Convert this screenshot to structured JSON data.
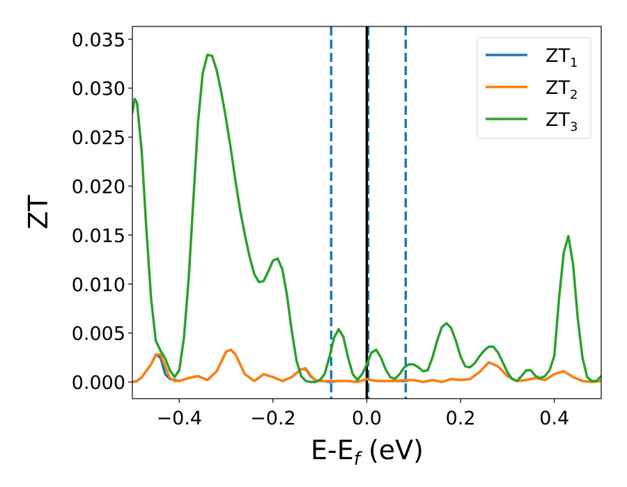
{
  "chart_data": {
    "type": "line",
    "xlabel_main": "E-E",
    "xlabel_sub": "f",
    "xlabel_unit": " (eV)",
    "ylabel": "ZT",
    "xlim": [
      -0.5,
      0.5
    ],
    "ylim": [
      -0.0017,
      0.0363
    ],
    "xticks": [
      -0.4,
      -0.2,
      0.0,
      0.2,
      0.4
    ],
    "xtick_labels": [
      "−0.4",
      "−0.2",
      "0.0",
      "0.2",
      "0.4"
    ],
    "yticks": [
      0.0,
      0.005,
      0.01,
      0.015,
      0.02,
      0.025,
      0.03,
      0.035
    ],
    "ytick_labels": [
      "0.000",
      "0.005",
      "0.010",
      "0.015",
      "0.020",
      "0.025",
      "0.030",
      "0.035"
    ],
    "grid": false,
    "legend_position": "top-right",
    "vlines": [
      {
        "x": -0.076,
        "style": "dashed",
        "color": "#1f77b4"
      },
      {
        "x": 0.0,
        "style": "solid",
        "color": "#000000"
      },
      {
        "x": 0.003,
        "style": "dashed",
        "color": "#1f77b4"
      },
      {
        "x": 0.083,
        "style": "dashed",
        "color": "#1f77b4"
      }
    ],
    "series": [
      {
        "name_main": "ZT",
        "name_sub": "1",
        "color": "#1f77b4",
        "x": [
          -0.5,
          -0.49,
          -0.48,
          -0.46,
          -0.45,
          -0.44,
          -0.43,
          -0.42,
          -0.41,
          -0.4,
          -0.38,
          -0.36,
          -0.34,
          -0.32,
          -0.3,
          -0.29,
          -0.28,
          -0.26,
          -0.24,
          -0.22,
          -0.2,
          -0.18,
          -0.16,
          -0.14,
          -0.13,
          -0.12,
          -0.11,
          -0.1,
          -0.09,
          -0.08,
          -0.06,
          -0.04,
          -0.02,
          0.0,
          0.02,
          0.04,
          0.06,
          0.08,
          0.09,
          0.1,
          0.12,
          0.14,
          0.16,
          0.18,
          0.2,
          0.22,
          0.24,
          0.26,
          0.28,
          0.3,
          0.32,
          0.34,
          0.36,
          0.38,
          0.4,
          0.42,
          0.44,
          0.46,
          0.48,
          0.5
        ],
        "y": [
          0.0,
          0.0001,
          0.0005,
          0.0018,
          0.0028,
          0.0025,
          0.0008,
          0.0003,
          0.0002,
          0.0001,
          0.0004,
          0.0006,
          0.0002,
          0.0011,
          0.0031,
          0.0033,
          0.0028,
          0.0008,
          0.0001,
          0.0008,
          0.0005,
          0.0001,
          0.0005,
          0.0013,
          0.0013,
          0.0006,
          0.0002,
          0.0001,
          0.0001,
          0.0,
          0.0001,
          0.0001,
          0.0,
          0.0003,
          0.0001,
          0.0001,
          0.0001,
          0.0001,
          0.0002,
          0.0002,
          0.0,
          0.0002,
          0.0,
          0.0003,
          0.0002,
          0.0003,
          0.001,
          0.002,
          0.0016,
          0.0006,
          0.0001,
          0.0002,
          0.0004,
          0.0002,
          0.0008,
          0.0011,
          0.0005,
          0.0001,
          0.0,
          0.0001
        ]
      },
      {
        "name_main": "ZT",
        "name_sub": "2",
        "color": "#ff7f0e",
        "x": [
          -0.5,
          -0.49,
          -0.48,
          -0.46,
          -0.45,
          -0.44,
          -0.43,
          -0.42,
          -0.41,
          -0.4,
          -0.38,
          -0.36,
          -0.34,
          -0.32,
          -0.3,
          -0.29,
          -0.28,
          -0.26,
          -0.24,
          -0.22,
          -0.2,
          -0.18,
          -0.16,
          -0.14,
          -0.13,
          -0.12,
          -0.11,
          -0.1,
          -0.09,
          -0.08,
          -0.06,
          -0.04,
          -0.02,
          0.0,
          0.02,
          0.04,
          0.06,
          0.08,
          0.09,
          0.1,
          0.12,
          0.14,
          0.16,
          0.18,
          0.2,
          0.22,
          0.24,
          0.26,
          0.28,
          0.3,
          0.32,
          0.34,
          0.36,
          0.38,
          0.4,
          0.42,
          0.44,
          0.46,
          0.48,
          0.5
        ],
        "y": [
          0.0,
          0.0001,
          0.0005,
          0.0018,
          0.0028,
          0.0028,
          0.0016,
          0.0004,
          0.0001,
          0.0001,
          0.0004,
          0.0006,
          0.0002,
          0.0011,
          0.0031,
          0.0033,
          0.0028,
          0.0008,
          0.0001,
          0.0008,
          0.0005,
          0.0001,
          0.0005,
          0.0013,
          0.0014,
          0.0007,
          0.0002,
          0.0001,
          0.0001,
          0.0001,
          0.0001,
          0.0001,
          0.0,
          0.0003,
          0.0001,
          0.0001,
          0.0001,
          0.0002,
          0.0002,
          0.0002,
          0.0,
          0.0002,
          0.0,
          0.0003,
          0.0002,
          0.0003,
          0.001,
          0.002,
          0.0016,
          0.0006,
          0.0001,
          0.0002,
          0.0004,
          0.0002,
          0.0008,
          0.0011,
          0.0005,
          0.0001,
          0.0,
          0.0001
        ]
      },
      {
        "name_main": "ZT",
        "name_sub": "3",
        "color": "#2ca02c",
        "x": [
          -0.5,
          -0.495,
          -0.49,
          -0.48,
          -0.47,
          -0.46,
          -0.45,
          -0.44,
          -0.43,
          -0.42,
          -0.41,
          -0.4,
          -0.39,
          -0.38,
          -0.37,
          -0.36,
          -0.35,
          -0.34,
          -0.33,
          -0.32,
          -0.31,
          -0.3,
          -0.29,
          -0.28,
          -0.27,
          -0.26,
          -0.25,
          -0.24,
          -0.23,
          -0.22,
          -0.21,
          -0.2,
          -0.19,
          -0.18,
          -0.17,
          -0.16,
          -0.15,
          -0.14,
          -0.13,
          -0.12,
          -0.11,
          -0.1,
          -0.09,
          -0.08,
          -0.07,
          -0.06,
          -0.05,
          -0.04,
          -0.03,
          -0.02,
          -0.01,
          0.0,
          0.01,
          0.02,
          0.03,
          0.04,
          0.05,
          0.06,
          0.07,
          0.08,
          0.09,
          0.1,
          0.11,
          0.12,
          0.13,
          0.14,
          0.15,
          0.16,
          0.17,
          0.18,
          0.19,
          0.2,
          0.21,
          0.22,
          0.23,
          0.24,
          0.25,
          0.26,
          0.27,
          0.28,
          0.29,
          0.3,
          0.31,
          0.32,
          0.33,
          0.34,
          0.35,
          0.36,
          0.37,
          0.38,
          0.39,
          0.4,
          0.41,
          0.42,
          0.43,
          0.44,
          0.45,
          0.46,
          0.47,
          0.48,
          0.49,
          0.5
        ],
        "y": [
          0.0275,
          0.0289,
          0.0285,
          0.0235,
          0.0155,
          0.0085,
          0.0042,
          0.0032,
          0.0024,
          0.0012,
          0.0005,
          0.0012,
          0.0045,
          0.0105,
          0.0185,
          0.0265,
          0.0315,
          0.0334,
          0.0333,
          0.0318,
          0.0295,
          0.0268,
          0.0238,
          0.0205,
          0.0175,
          0.015,
          0.0128,
          0.011,
          0.0102,
          0.0103,
          0.0113,
          0.0124,
          0.0126,
          0.0115,
          0.0088,
          0.0052,
          0.0022,
          0.0006,
          0.0001,
          0.0,
          0.0,
          0.0002,
          0.0008,
          0.0025,
          0.0045,
          0.0054,
          0.0046,
          0.0025,
          0.0008,
          0.0002,
          0.0008,
          0.0018,
          0.003,
          0.0033,
          0.0025,
          0.0013,
          0.0005,
          0.0003,
          0.0008,
          0.0015,
          0.0018,
          0.0018,
          0.0015,
          0.0011,
          0.0012,
          0.0025,
          0.0042,
          0.0056,
          0.006,
          0.0055,
          0.0042,
          0.0026,
          0.0016,
          0.0015,
          0.0019,
          0.0026,
          0.0032,
          0.0036,
          0.0036,
          0.003,
          0.002,
          0.001,
          0.0003,
          0.0001,
          0.0006,
          0.0012,
          0.0012,
          0.0006,
          0.0004,
          0.0006,
          0.0012,
          0.0027,
          0.0085,
          0.0132,
          0.0149,
          0.012,
          0.0065,
          0.0025,
          0.0005,
          0.0001,
          0.0001,
          0.0006
        ]
      }
    ]
  }
}
